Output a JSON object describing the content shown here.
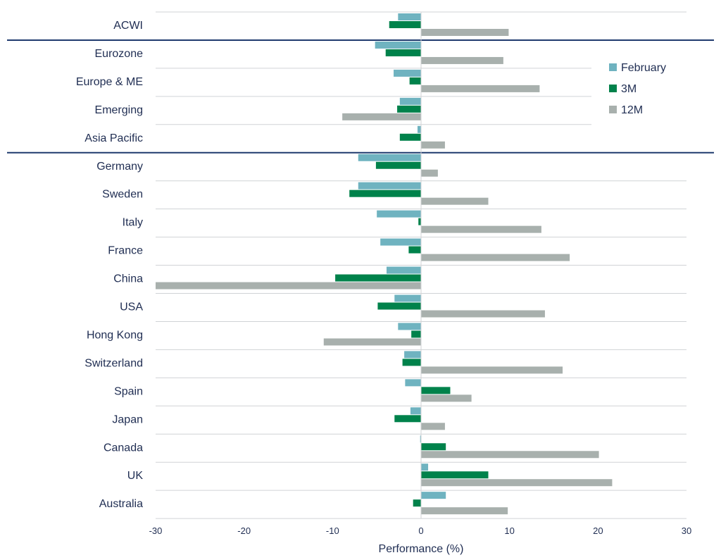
{
  "chart_data": {
    "type": "bar",
    "orientation": "horizontal",
    "xlabel": "Performance (%)",
    "xlim": [
      -30,
      30
    ],
    "xticks": [
      -30,
      -20,
      -10,
      0,
      10,
      20,
      30
    ],
    "legend_position": "right",
    "categories": [
      "ACWI",
      "Eurozone",
      "Europe & ME",
      "Emerging",
      "Asia Pacific",
      "Germany",
      "Sweden",
      "Italy",
      "France",
      "China",
      "USA",
      "Hong Kong",
      "Switzerland",
      "Spain",
      "Japan",
      "Canada",
      "UK",
      "Australia"
    ],
    "series": [
      {
        "name": "February",
        "color": "#6fb3c0",
        "values": [
          -2.6,
          -5.2,
          -3.1,
          -2.4,
          -0.4,
          -7.1,
          -7.1,
          -5.0,
          -4.6,
          -3.9,
          -3.0,
          -2.6,
          -1.9,
          -1.8,
          -1.2,
          -0.1,
          0.8,
          2.8
        ]
      },
      {
        "name": "3M",
        "color": "#00824b",
        "values": [
          -3.6,
          -4.0,
          -1.3,
          -2.7,
          -2.4,
          -5.1,
          -8.1,
          -0.3,
          -1.4,
          -9.7,
          -4.9,
          -1.1,
          -2.1,
          3.3,
          -3.0,
          2.8,
          7.6,
          -0.9
        ]
      },
      {
        "name": "12M",
        "color": "#a8b0ad",
        "values": [
          9.9,
          9.3,
          13.4,
          -8.9,
          2.7,
          1.9,
          7.6,
          13.6,
          16.8,
          -30.0,
          14.0,
          -11.0,
          16.0,
          5.7,
          2.7,
          20.1,
          21.6,
          9.8
        ]
      }
    ],
    "group_separators_after": [
      "ACWI",
      "Asia Pacific"
    ]
  }
}
